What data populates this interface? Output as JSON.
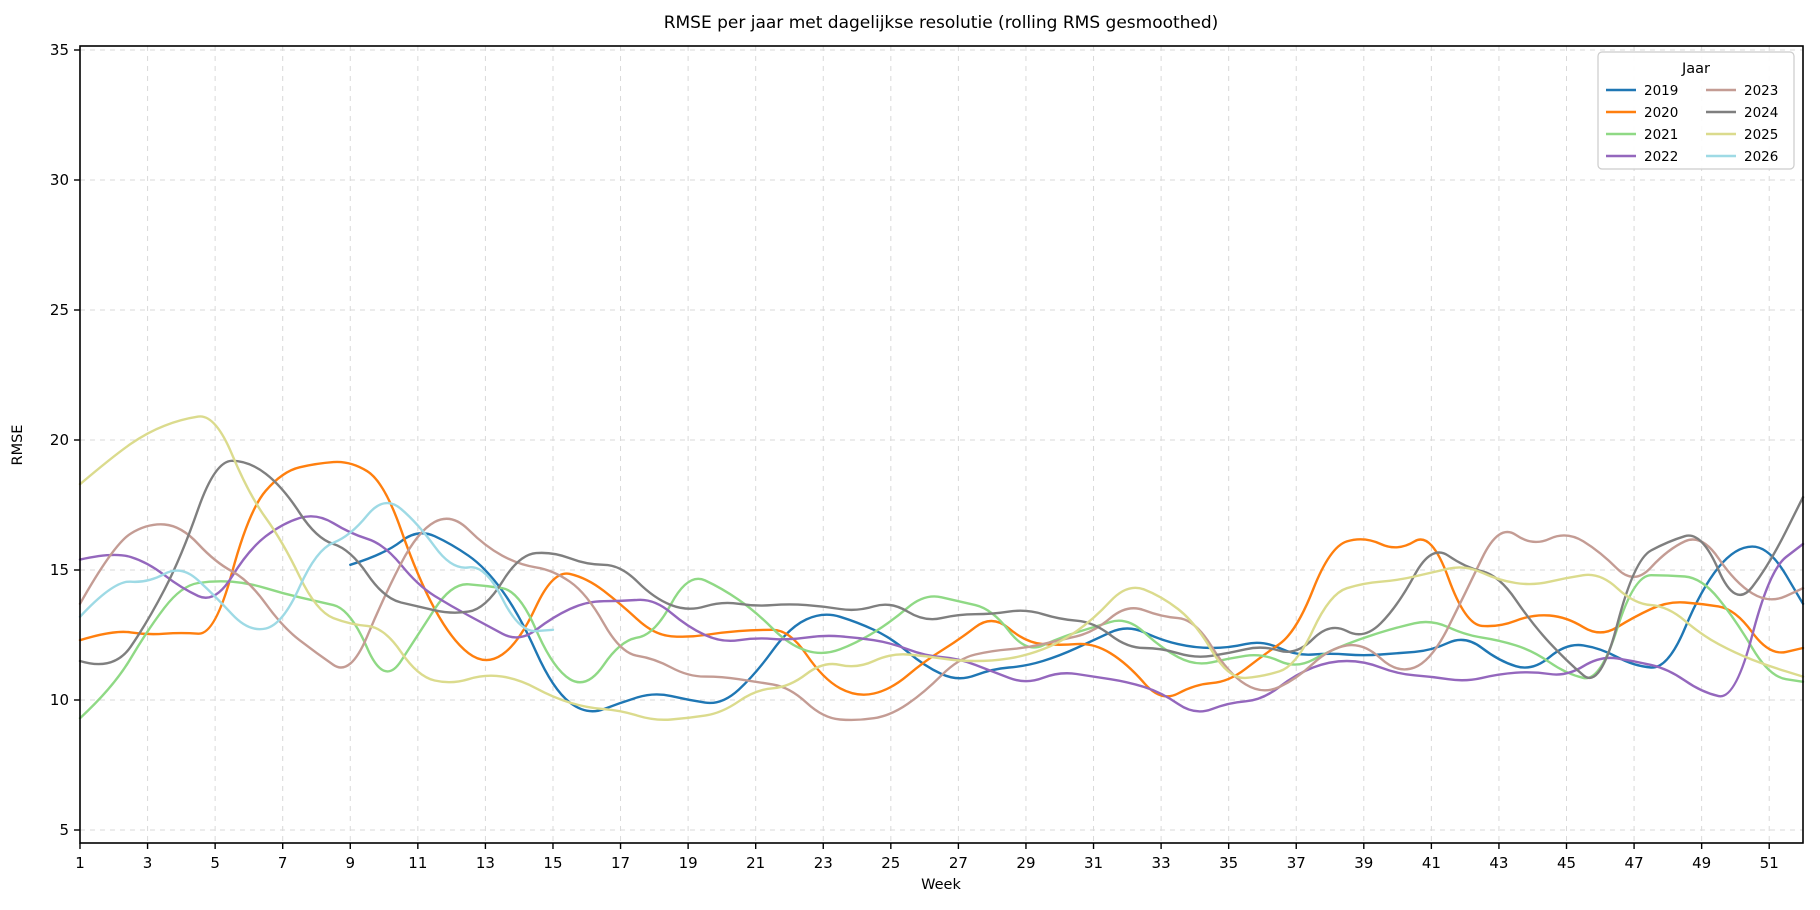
{
  "chart_data": {
    "type": "line",
    "title": "RMSE per jaar met dagelijkse resolutie (rolling RMS gesmoothed)",
    "xlabel": "Week",
    "ylabel": "RMSE",
    "xlim": [
      1,
      52.3
    ],
    "ylim": [
      4.5,
      35.2
    ],
    "grid": "dashed both axes",
    "x_ticks": [
      1,
      3,
      5,
      7,
      9,
      11,
      13,
      15,
      17,
      19,
      21,
      23,
      25,
      27,
      29,
      31,
      33,
      35,
      37,
      39,
      41,
      43,
      45,
      47,
      49,
      51
    ],
    "y_ticks": [
      5,
      10,
      15,
      20,
      25,
      30,
      35
    ],
    "legend": {
      "title": "Jaar",
      "position": "upper right",
      "columns": 2
    },
    "weeks": [
      1,
      2,
      3,
      4,
      5,
      6,
      7,
      8,
      9,
      10,
      11,
      12,
      13,
      14,
      15,
      16,
      17,
      18,
      19,
      20,
      21,
      22,
      23,
      24,
      25,
      26,
      27,
      28,
      29,
      30,
      31,
      32,
      33,
      34,
      35,
      36,
      37,
      38,
      39,
      40,
      41,
      42,
      43,
      44,
      45,
      46,
      47,
      48,
      49,
      50,
      51,
      52
    ],
    "series": [
      {
        "name": "2019",
        "color": "#1f77b4",
        "values": [
          null,
          null,
          null,
          null,
          null,
          null,
          null,
          null,
          15.2,
          15.6,
          16.6,
          16.0,
          15.1,
          13.3,
          10.4,
          9.4,
          9.9,
          10.3,
          10.0,
          9.8,
          11.0,
          12.8,
          13.4,
          13.0,
          12.4,
          11.3,
          10.7,
          11.2,
          11.3,
          11.7,
          12.3,
          12.9,
          12.3,
          12.0,
          12.0,
          12.3,
          11.7,
          11.8,
          11.7,
          11.8,
          11.9,
          12.5,
          11.5,
          11.1,
          12.2,
          12.0,
          11.3,
          11.2,
          14.3,
          15.9,
          15.9,
          13.7
        ]
      },
      {
        "name": "2020",
        "color": "#ff7f0e",
        "values": [
          12.3,
          12.7,
          12.5,
          12.6,
          12.5,
          17.3,
          18.8,
          19.1,
          19.2,
          18.4,
          14.7,
          12.3,
          11.3,
          12.2,
          15.0,
          14.7,
          13.7,
          12.5,
          12.4,
          12.6,
          12.7,
          12.7,
          10.8,
          10.1,
          10.4,
          11.5,
          12.3,
          13.3,
          12.2,
          12.1,
          12.2,
          11.4,
          9.9,
          10.6,
          10.7,
          11.7,
          12.6,
          15.9,
          16.3,
          15.7,
          16.5,
          12.9,
          12.8,
          13.3,
          13.2,
          12.4,
          13.2,
          13.8,
          13.7,
          13.5,
          11.7,
          12.0
        ]
      },
      {
        "name": "2021",
        "color": "#8fd985",
        "values": [
          9.3,
          10.5,
          12.7,
          14.4,
          14.6,
          14.5,
          14.1,
          13.8,
          13.5,
          10.5,
          12.5,
          14.5,
          14.4,
          14.2,
          11.2,
          10.4,
          12.3,
          12.5,
          14.9,
          14.3,
          13.4,
          12.1,
          11.7,
          12.2,
          13.0,
          14.1,
          13.8,
          13.5,
          11.8,
          12.4,
          12.8,
          13.2,
          12.0,
          11.3,
          11.6,
          11.8,
          11.2,
          11.9,
          12.4,
          12.8,
          13.1,
          12.5,
          12.3,
          11.9,
          11.0,
          10.7,
          14.8,
          14.8,
          14.7,
          13.1,
          10.9,
          10.7
        ]
      },
      {
        "name": "2022",
        "color": "#9467bd",
        "values": [
          15.4,
          15.7,
          15.3,
          14.3,
          13.7,
          15.8,
          16.8,
          17.2,
          16.4,
          16.0,
          14.4,
          13.6,
          12.9,
          12.2,
          13.2,
          13.8,
          13.8,
          13.9,
          12.8,
          12.2,
          12.4,
          12.3,
          12.5,
          12.4,
          12.2,
          11.7,
          11.6,
          11.1,
          10.6,
          11.1,
          10.9,
          10.7,
          10.3,
          9.4,
          9.9,
          10.0,
          11.0,
          11.5,
          11.5,
          11.0,
          10.9,
          10.7,
          11.0,
          11.1,
          10.9,
          11.7,
          11.5,
          11.2,
          10.3,
          10.0,
          15.0,
          16.0
        ]
      },
      {
        "name": "2023",
        "color": "#c49c94",
        "values": [
          13.7,
          16.0,
          16.8,
          16.7,
          15.3,
          14.6,
          12.8,
          11.8,
          10.9,
          14.0,
          16.5,
          17.2,
          15.9,
          15.2,
          15.0,
          14.1,
          11.8,
          11.6,
          10.9,
          10.9,
          10.7,
          10.5,
          9.3,
          9.2,
          9.4,
          10.3,
          11.6,
          11.9,
          12.0,
          12.3,
          12.6,
          13.7,
          13.2,
          13.1,
          11.0,
          10.2,
          10.8,
          12.0,
          12.2,
          11.0,
          11.5,
          14.1,
          16.8,
          15.9,
          16.5,
          15.7,
          14.4,
          15.8,
          16.4,
          14.5,
          13.7,
          14.3
        ]
      },
      {
        "name": "2024",
        "color": "#7f7f7f",
        "values": [
          11.5,
          11.1,
          13.0,
          15.5,
          19.2,
          19.2,
          18.2,
          16.2,
          15.8,
          13.9,
          13.6,
          13.3,
          13.5,
          15.6,
          15.7,
          15.2,
          15.2,
          13.9,
          13.4,
          13.8,
          13.6,
          13.7,
          13.6,
          13.4,
          13.8,
          13.0,
          13.3,
          13.3,
          13.5,
          13.1,
          13.0,
          12.0,
          12.0,
          11.6,
          11.8,
          12.1,
          11.7,
          13.0,
          12.3,
          13.6,
          16.0,
          15.1,
          14.8,
          12.9,
          11.5,
          10.4,
          15.4,
          16.1,
          16.5,
          13.5,
          15.2,
          17.8
        ]
      },
      {
        "name": "2025",
        "color": "#dbdb8d",
        "values": [
          18.3,
          19.4,
          20.3,
          20.8,
          21.0,
          17.9,
          16.1,
          13.4,
          12.9,
          12.8,
          10.9,
          10.6,
          11.0,
          10.8,
          10.1,
          9.7,
          9.6,
          9.2,
          9.3,
          9.5,
          10.4,
          10.5,
          11.5,
          11.2,
          11.8,
          11.7,
          11.5,
          11.5,
          11.7,
          12.2,
          13.1,
          14.5,
          14.0,
          13.0,
          10.8,
          10.9,
          11.3,
          14.1,
          14.5,
          14.6,
          14.9,
          15.2,
          14.6,
          14.4,
          14.7,
          14.9,
          13.7,
          13.6,
          12.5,
          11.8,
          11.3,
          10.9
        ]
      },
      {
        "name": "2026",
        "color": "#9edae5",
        "values": [
          13.2,
          14.6,
          14.5,
          15.2,
          14.0,
          12.6,
          12.9,
          15.8,
          16.3,
          17.9,
          16.8,
          15.0,
          15.2,
          12.6,
          12.7,
          null,
          null,
          null,
          null,
          null,
          null,
          null,
          null,
          null,
          null,
          null,
          null,
          null,
          null,
          null,
          null,
          null,
          null,
          null,
          null,
          null,
          null,
          null,
          null,
          null,
          null,
          null,
          null,
          null,
          null,
          null,
          null,
          null,
          null,
          null,
          null,
          null
        ]
      }
    ]
  }
}
